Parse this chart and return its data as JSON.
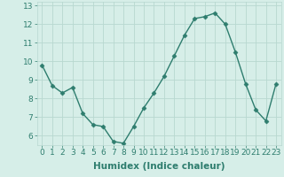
{
  "x": [
    0,
    1,
    2,
    3,
    4,
    5,
    6,
    7,
    8,
    9,
    10,
    11,
    12,
    13,
    14,
    15,
    16,
    17,
    18,
    19,
    20,
    21,
    22,
    23
  ],
  "y": [
    9.8,
    8.7,
    8.3,
    8.6,
    7.2,
    6.6,
    6.5,
    5.7,
    5.6,
    6.5,
    7.5,
    8.3,
    9.2,
    10.3,
    11.4,
    12.3,
    12.4,
    12.6,
    12.0,
    10.5,
    8.8,
    7.4,
    6.8,
    8.8
  ],
  "line_color": "#2e7d6e",
  "marker": "D",
  "marker_size": 2.5,
  "bg_color": "#d6eee8",
  "grid_color": "#b8d8d0",
  "xlabel": "Humidex (Indice chaleur)",
  "xlim_min": -0.5,
  "xlim_max": 23.5,
  "ylim_min": 5.5,
  "ylim_max": 13.2,
  "yticks": [
    6,
    7,
    8,
    9,
    10,
    11,
    12,
    13
  ],
  "xticks": [
    0,
    1,
    2,
    3,
    4,
    5,
    6,
    7,
    8,
    9,
    10,
    11,
    12,
    13,
    14,
    15,
    16,
    17,
    18,
    19,
    20,
    21,
    22,
    23
  ],
  "xlabel_fontsize": 7.5,
  "tick_fontsize": 6.5,
  "line_width": 1.0
}
